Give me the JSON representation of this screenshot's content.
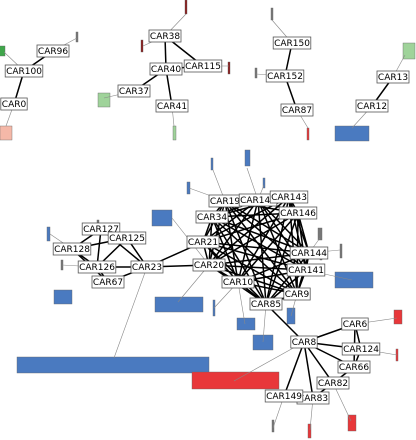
{
  "nodes": [
    "CAR96",
    "CAR100",
    "CAR0",
    "CAR38",
    "CAR40",
    "CAR115",
    "CAR37",
    "CAR41",
    "CAR150",
    "CAR152",
    "CAR87",
    "CAR13",
    "CAR12",
    "CAR127",
    "CAR125",
    "CAR126",
    "CAR128",
    "CAR23",
    "CAR67",
    "CAR19",
    "CAR148",
    "CAR143",
    "CAR146",
    "CAR144",
    "CAR141",
    "CAR21",
    "CAR20",
    "CAR10",
    "CAR85",
    "CAR9",
    "CAR6",
    "CAR8",
    "CAR124",
    "CAR66",
    "CAR82",
    "CAR83",
    "CAR149",
    "CAR34"
  ],
  "colors": {
    "blue": "#4a7ac0",
    "red": "#e8373a",
    "light_green": "#9fd39a",
    "green": "#3fa64a",
    "peach": "#f5b8a8",
    "dark_red": "#8a1a1a",
    "gray": "#777777",
    "edge": "#000000",
    "thin_edge": "#888888"
  }
}
